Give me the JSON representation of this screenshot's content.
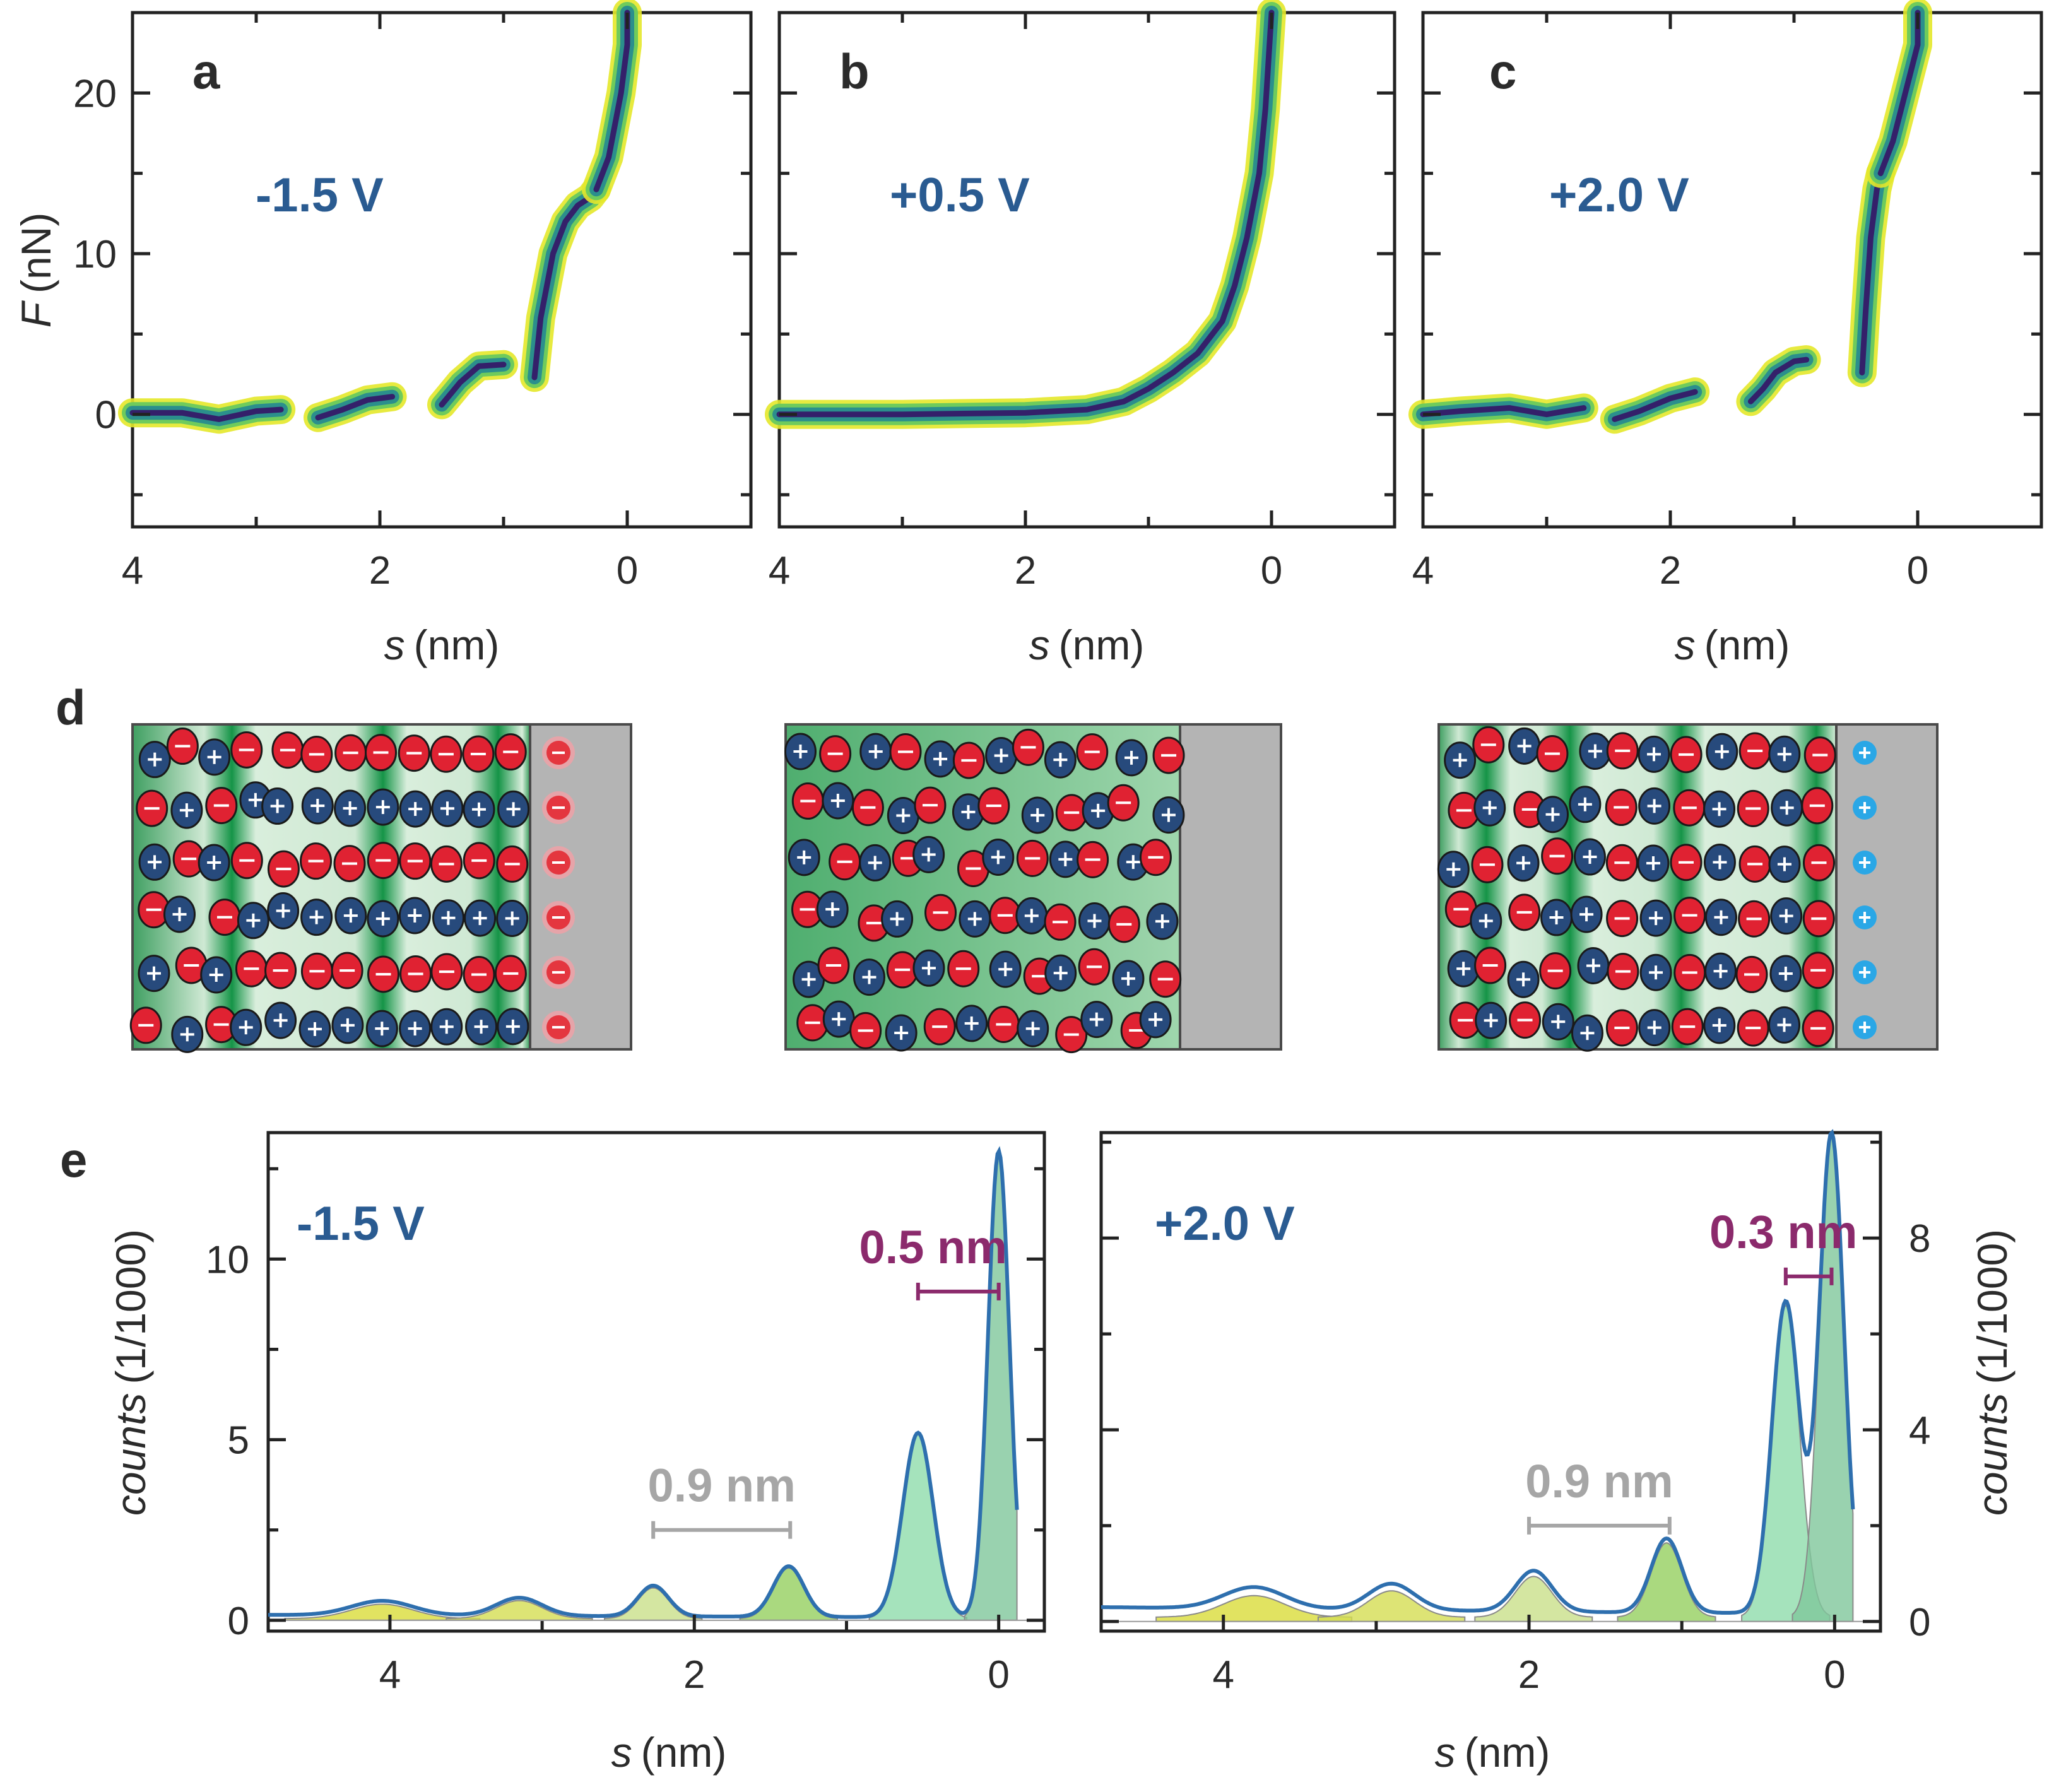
{
  "panel_labels": {
    "a": "a",
    "b": "b",
    "c": "c",
    "d": "d",
    "e": "e"
  },
  "colors": {
    "voltage_text": "#2a5b91",
    "spacing_magenta": "#8b2a6c",
    "spacing_gray": "#a6a6a6",
    "anion_red": "#e02232",
    "cation_blue": "#274a7c",
    "electrode_gray": "#b4b4b4",
    "electrode_blue_charge": "#2aa7e6",
    "line_blue": "#2e6fae"
  },
  "chart_data": [
    {
      "type": "heatmap",
      "panel": "a",
      "annotation": "-1.5 V",
      "xlabel_var": "s",
      "xlabel_unit": "(nm)",
      "ylabel_var": "F",
      "ylabel_unit": "(nN)",
      "xlim": [
        4,
        -1
      ],
      "ylim": [
        -7,
        25
      ],
      "xticks": [
        "4",
        "2",
        "0"
      ],
      "yticks": [
        "20",
        "10",
        "0"
      ],
      "segments": [
        {
          "s": [
            4.0,
            3.6,
            3.3,
            3.0,
            2.8
          ],
          "F": [
            0.1,
            0.1,
            -0.3,
            0.2,
            0.3
          ]
        },
        {
          "s": [
            2.5,
            2.3,
            2.1,
            1.9
          ],
          "F": [
            -0.2,
            0.3,
            0.9,
            1.1
          ]
        },
        {
          "s": [
            1.5,
            1.35,
            1.2,
            1.0
          ],
          "F": [
            0.6,
            2.0,
            3.0,
            3.1
          ]
        },
        {
          "s": [
            0.75,
            0.7,
            0.6,
            0.5,
            0.4,
            0.3,
            0.25
          ],
          "F": [
            2.3,
            6.0,
            10.0,
            12.0,
            13.0,
            13.5,
            14.0
          ]
        },
        {
          "s": [
            0.25,
            0.15,
            0.05,
            0.0,
            0.0
          ],
          "F": [
            14.0,
            16.0,
            20.0,
            23.0,
            25.0
          ]
        }
      ]
    },
    {
      "type": "heatmap",
      "panel": "b",
      "annotation": "+0.5 V",
      "xlabel_var": "s",
      "xlabel_unit": "(nm)",
      "xlim": [
        4,
        -1
      ],
      "ylim": [
        -7,
        25
      ],
      "xticks": [
        "4",
        "2",
        "0"
      ],
      "segments": [
        {
          "s": [
            4.0,
            3.0,
            2.0,
            1.5,
            1.2,
            1.0,
            0.8,
            0.6,
            0.4,
            0.3,
            0.2,
            0.1,
            0.05,
            0.0
          ],
          "F": [
            0.0,
            0.0,
            0.1,
            0.3,
            0.8,
            1.6,
            2.6,
            3.8,
            5.8,
            8.0,
            11.0,
            15.0,
            19.0,
            25.0
          ]
        }
      ]
    },
    {
      "type": "heatmap",
      "panel": "c",
      "annotation": "+2.0 V",
      "xlabel_var": "s",
      "xlabel_unit": "(nm)",
      "xlim": [
        4,
        -1
      ],
      "ylim": [
        -7,
        25
      ],
      "xticks": [
        "4",
        "2",
        "0"
      ],
      "segments": [
        {
          "s": [
            4.0,
            3.7,
            3.3,
            3.0,
            2.7
          ],
          "F": [
            0.0,
            0.2,
            0.4,
            0.0,
            0.4
          ]
        },
        {
          "s": [
            2.45,
            2.25,
            2.0,
            1.8
          ],
          "F": [
            -0.3,
            0.2,
            1.0,
            1.4
          ]
        },
        {
          "s": [
            1.35,
            1.25,
            1.15,
            1.0,
            0.9
          ],
          "F": [
            0.8,
            1.6,
            2.6,
            3.3,
            3.4
          ]
        },
        {
          "s": [
            0.45,
            0.42,
            0.38,
            0.33,
            0.3
          ],
          "F": [
            2.6,
            6.5,
            11.0,
            14.0,
            15.0
          ]
        },
        {
          "s": [
            0.3,
            0.2,
            0.1,
            0.0,
            0.0
          ],
          "F": [
            15.0,
            17.0,
            20.0,
            23.0,
            25.0
          ]
        }
      ]
    },
    {
      "type": "area",
      "panel": "e-left",
      "annotation": "-1.5 V",
      "xlabel_var": "s",
      "xlabel_unit": "(nm)",
      "ylabel_var": "counts",
      "ylabel_unit": "(1/1000)",
      "xlim": [
        4.8,
        -0.3
      ],
      "ylim": [
        -0.3,
        13.5
      ],
      "xticks": [
        "4",
        "2",
        "0"
      ],
      "yticks": [
        "10",
        "5",
        "0"
      ],
      "baseline": 0.15,
      "peaks": [
        {
          "s": 4.05,
          "height": 0.4,
          "width": 0.2
        },
        {
          "s": 3.15,
          "height": 0.5,
          "width": 0.15
        },
        {
          "s": 2.27,
          "height": 0.85,
          "width": 0.1
        },
        {
          "s": 1.38,
          "height": 1.4,
          "width": 0.1
        },
        {
          "s": 0.53,
          "height": 5.1,
          "width": 0.1
        },
        {
          "s": 0.0,
          "height": 12.9,
          "width": 0.07
        }
      ],
      "spacings": [
        {
          "label": "0.9 nm",
          "from": 2.27,
          "to": 1.37,
          "y": 2.5,
          "color": "gray"
        },
        {
          "label": "0.5 nm",
          "from": 0.53,
          "to": 0.0,
          "y": 9.1,
          "color": "magenta"
        }
      ]
    },
    {
      "type": "area",
      "panel": "e-right",
      "annotation": "+2.0 V",
      "xlabel_var": "s",
      "xlabel_unit": "(nm)",
      "ylabel_var": "counts",
      "ylabel_unit": "(1/1000)",
      "xlim": [
        4.8,
        -0.3
      ],
      "ylim": [
        -0.2,
        10.2
      ],
      "xticks": [
        "4",
        "2",
        "0"
      ],
      "yticks": [
        "8",
        "4",
        "0"
      ],
      "baseline": 0.3,
      "peaks": [
        {
          "s": 3.8,
          "height": 0.45,
          "width": 0.2
        },
        {
          "s": 2.9,
          "height": 0.55,
          "width": 0.15
        },
        {
          "s": 1.97,
          "height": 0.85,
          "width": 0.12
        },
        {
          "s": 1.1,
          "height": 1.55,
          "width": 0.1
        },
        {
          "s": 0.32,
          "height": 6.5,
          "width": 0.09
        },
        {
          "s": 0.02,
          "height": 10.0,
          "width": 0.08
        }
      ],
      "spacings": [
        {
          "label": "0.9 nm",
          "from": 2.0,
          "to": 1.08,
          "y": 2.0,
          "color": "gray"
        },
        {
          "label": "0.3 nm",
          "from": 0.32,
          "to": 0.02,
          "y": 7.2,
          "color": "magenta"
        }
      ]
    }
  ],
  "schematics": [
    {
      "panel": "d-left",
      "electrode_charge": "-",
      "band_positions": [
        0.25,
        0.63,
        0.92
      ]
    },
    {
      "panel": "d-middle",
      "electrode_charge": "",
      "band_positions": []
    },
    {
      "panel": "d-right",
      "electrode_charge": "+",
      "band_positions": [
        0.12,
        0.33,
        0.61,
        0.95
      ]
    }
  ]
}
